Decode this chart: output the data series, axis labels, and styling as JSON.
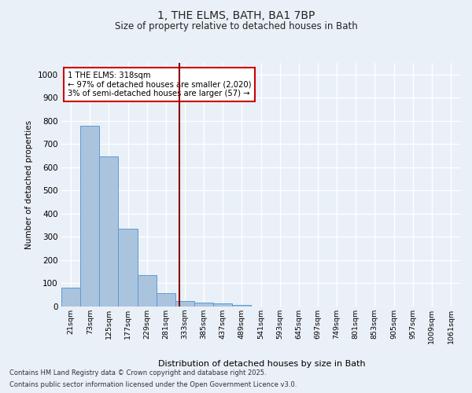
{
  "title_line1": "1, THE ELMS, BATH, BA1 7BP",
  "title_line2": "Size of property relative to detached houses in Bath",
  "xlabel": "Distribution of detached houses by size in Bath",
  "ylabel": "Number of detached properties",
  "categories": [
    "21sqm",
    "73sqm",
    "125sqm",
    "177sqm",
    "229sqm",
    "281sqm",
    "333sqm",
    "385sqm",
    "437sqm",
    "489sqm",
    "541sqm",
    "593sqm",
    "645sqm",
    "697sqm",
    "749sqm",
    "801sqm",
    "853sqm",
    "905sqm",
    "957sqm",
    "1009sqm",
    "1061sqm"
  ],
  "bar_values": [
    82,
    780,
    648,
    335,
    135,
    57,
    25,
    18,
    13,
    8,
    0,
    0,
    0,
    0,
    0,
    0,
    0,
    0,
    0,
    0,
    0
  ],
  "bar_color": "#aac4de",
  "bar_edge_color": "#5b9bd5",
  "vline_x": 5.77,
  "vline_color": "#8b0000",
  "annotation_text": "1 THE ELMS: 318sqm\n← 97% of detached houses are smaller (2,020)\n3% of semi-detached houses are larger (57) →",
  "annotation_box_color": "#ffffff",
  "annotation_box_edge": "#cc0000",
  "ylim": [
    0,
    1050
  ],
  "yticks": [
    0,
    100,
    200,
    300,
    400,
    500,
    600,
    700,
    800,
    900,
    1000
  ],
  "footer_line1": "Contains HM Land Registry data © Crown copyright and database right 2025.",
  "footer_line2": "Contains public sector information licensed under the Open Government Licence v3.0.",
  "bg_color": "#eaf0f7",
  "plot_bg_color": "#eaf0f7",
  "grid_color": "#ffffff"
}
